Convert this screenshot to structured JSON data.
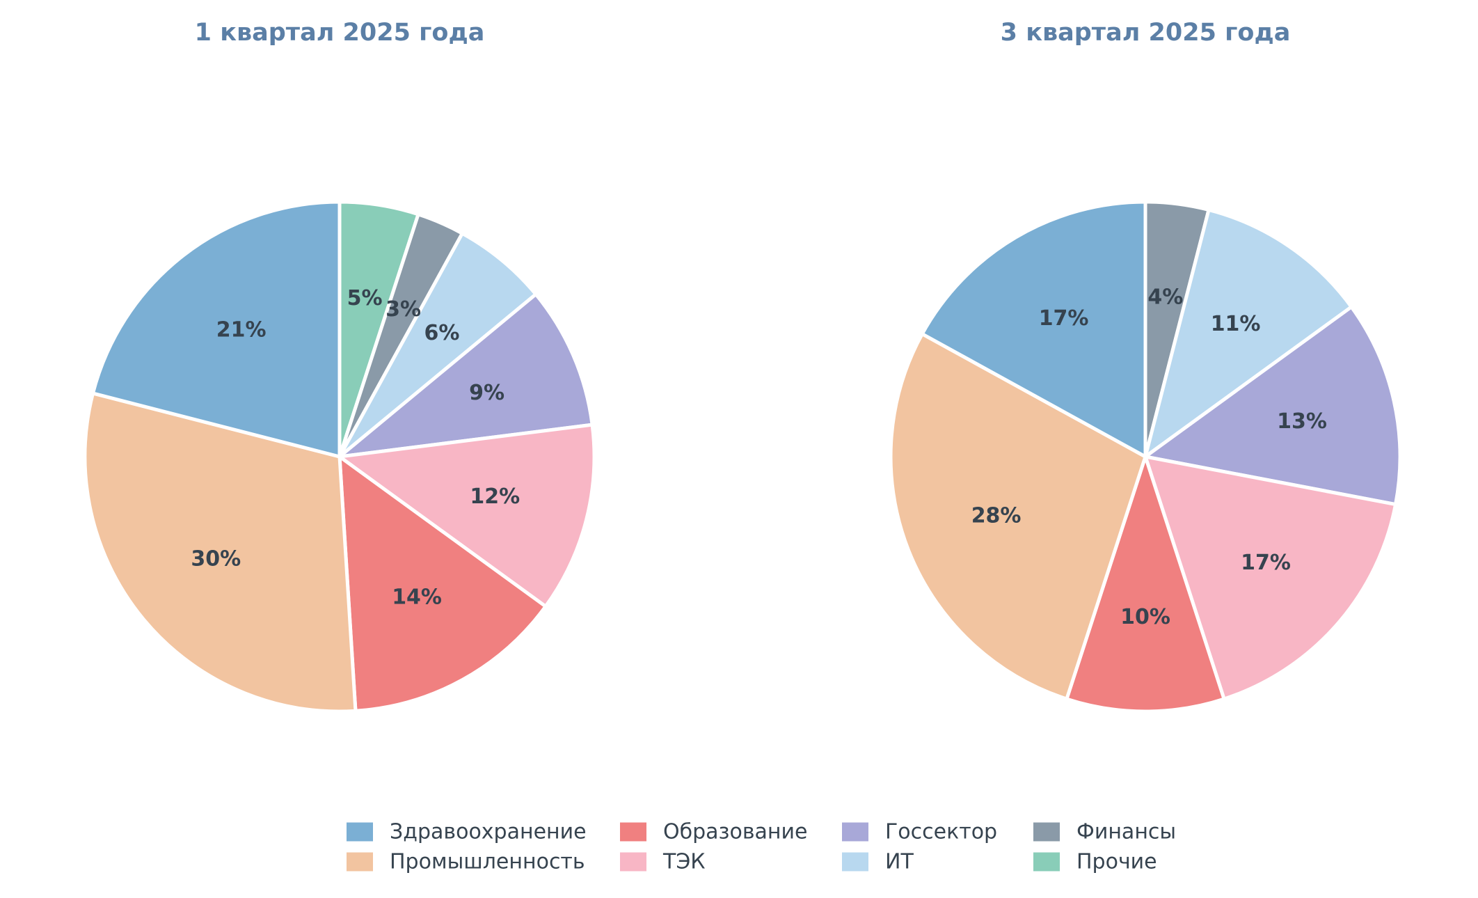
{
  "colors": {
    "title": "#5b7fa6",
    "label": "#36434f",
    "background": "#ffffff",
    "slice_border": "#ffffff"
  },
  "legend": {
    "placement": "bottom-center",
    "columns": 4,
    "items": [
      {
        "label": "Здравоохранение",
        "color": "#7bafd4"
      },
      {
        "label": "Промышленность",
        "color": "#f2c4a0"
      },
      {
        "label": "Образование",
        "color": "#f08080"
      },
      {
        "label": "ТЭК",
        "color": "#f8b6c5"
      },
      {
        "label": "Госсектор",
        "color": "#a8a8d8"
      },
      {
        "label": "ИТ",
        "color": "#b8d8ef"
      },
      {
        "label": "Финансы",
        "color": "#8a9aa8"
      },
      {
        "label": "Прочие",
        "color": "#89cdb8"
      }
    ]
  },
  "chart_data": [
    {
      "type": "pie",
      "title": "1 квартал 2025 года",
      "start": "top",
      "direction": "clockwise",
      "slices": [
        {
          "category": "Прочие",
          "value": 5,
          "label": "5%"
        },
        {
          "category": "Финансы",
          "value": 3,
          "label": "3%"
        },
        {
          "category": "ИТ",
          "value": 6,
          "label": "6%"
        },
        {
          "category": "Госсектор",
          "value": 9,
          "label": "9%"
        },
        {
          "category": "ТЭК",
          "value": 12,
          "label": "12%"
        },
        {
          "category": "Образование",
          "value": 14,
          "label": "14%"
        },
        {
          "category": "Промышленность",
          "value": 30,
          "label": "30%"
        },
        {
          "category": "Здравоохранение",
          "value": 21,
          "label": "21%"
        }
      ]
    },
    {
      "type": "pie",
      "title": "3 квартал 2025 года",
      "start": "top",
      "direction": "clockwise",
      "slices": [
        {
          "category": "Финансы",
          "value": 4,
          "label": "4%"
        },
        {
          "category": "ИТ",
          "value": 11,
          "label": "11%"
        },
        {
          "category": "Госсектор",
          "value": 13,
          "label": "13%"
        },
        {
          "category": "ТЭК",
          "value": 17,
          "label": "17%"
        },
        {
          "category": "Образование",
          "value": 10,
          "label": "10%"
        },
        {
          "category": "Промышленность",
          "value": 28,
          "label": "28%"
        },
        {
          "category": "Здравоохранение",
          "value": 17,
          "label": "17%"
        }
      ]
    }
  ]
}
